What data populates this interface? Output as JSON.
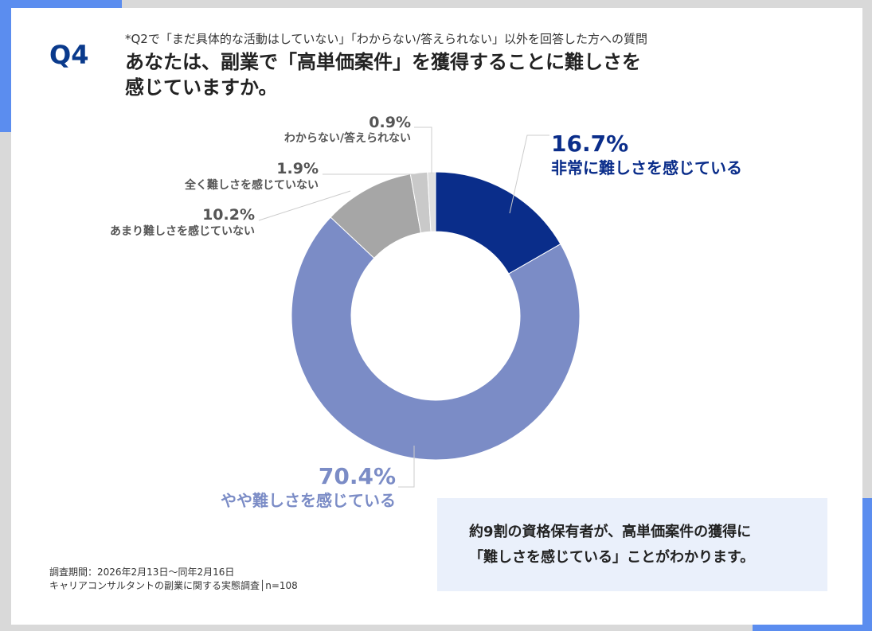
{
  "header": {
    "q_label": "Q4",
    "note": "*Q2で「まだ具体的な活動はしていない」「わからない/答えられない」以外を回答した方への質問",
    "title_line1": "あなたは、副業で「高単価案件」を獲得することに難しさを",
    "title_line2": "感じていますか。"
  },
  "chart_data": {
    "type": "pie",
    "donut": true,
    "start": "top, clockwise",
    "slices": [
      {
        "label": "非常に難しさを感じている",
        "value": 16.7,
        "value_label": "16.7%",
        "color": "#0a2d8a"
      },
      {
        "label": "やや難しさを感じている",
        "value": 70.4,
        "value_label": "70.4%",
        "color": "#7b8cc6"
      },
      {
        "label": "あまり難しさを感じていない",
        "value": 10.2,
        "value_label": "10.2%",
        "color": "#a6a6a6"
      },
      {
        "label": "全く難しさを感じていない",
        "value": 1.9,
        "value_label": "1.9%",
        "color": "#c9c9c9"
      },
      {
        "label": "わからない/答えられない",
        "value": 0.9,
        "value_label": "0.9%",
        "color": "#e0e0e0"
      }
    ]
  },
  "callout": {
    "line1": "約9割の資格保有者が、高単価案件の獲得に",
    "line2": "「難しさを感じている」ことがわかります。"
  },
  "footer": {
    "period": "調査期間：2026年2月13日～同年2月16日",
    "survey": "キャリアコンサルタントの副業に関する実態調査│n=108"
  }
}
